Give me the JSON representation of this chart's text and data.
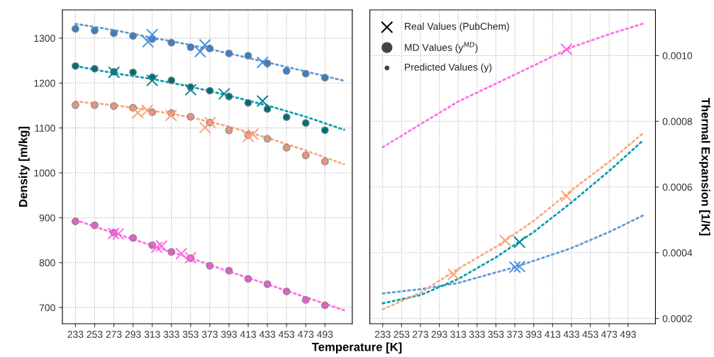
{
  "chart_data": [
    {
      "type": "scatter",
      "xlabel": "Temperature [K]",
      "ylabel": "Density [m/kg]",
      "xlim": [
        219.4,
        521.5
      ],
      "ylim": [
        664,
        1363
      ],
      "xticks": [
        233,
        253,
        273,
        293,
        313,
        333,
        353,
        373,
        393,
        413,
        433,
        453,
        473,
        493
      ],
      "yticks": [
        700,
        800,
        900,
        1000,
        1100,
        1200,
        1300
      ],
      "grid": true,
      "series": [
        {
          "type": "line",
          "line_style": "dotted",
          "color": "#5b9bd5",
          "x": [
            233,
            273,
            313,
            353,
            393,
            433,
            473,
            513
          ],
          "values": [
            1332,
            1318,
            1301,
            1285,
            1266,
            1246,
            1226,
            1205
          ]
        },
        {
          "marker": "circle",
          "color": "#3d7ebf",
          "x": [
            233,
            253,
            273,
            293,
            313,
            333,
            353,
            373,
            393,
            413,
            433,
            453,
            473,
            493
          ],
          "values": [
            1321,
            1317,
            1311,
            1305,
            1298,
            1290,
            1280,
            1277,
            1266,
            1261,
            1244,
            1227,
            1221,
            1212
          ]
        },
        {
          "marker": "cross",
          "color": "#4a90e2",
          "x": [
            308.6,
            313,
            363,
            368,
            428
          ],
          "values": [
            1292,
            1308,
            1270,
            1285,
            1246
          ]
        },
        {
          "type": "line",
          "line_style": "dotted",
          "color": "#00a0b0",
          "x": [
            233,
            273,
            313,
            353,
            393,
            433,
            473,
            513
          ],
          "values": [
            1238,
            1222,
            1209,
            1192,
            1172,
            1150,
            1125,
            1096
          ]
        },
        {
          "marker": "circle",
          "color": "#006e7a",
          "x": [
            233,
            253,
            273,
            293,
            313,
            333,
            353,
            373,
            393,
            413,
            433,
            453,
            473,
            493
          ],
          "values": [
            1238,
            1232,
            1225,
            1224,
            1213,
            1206,
            1191,
            1183,
            1170,
            1156,
            1142,
            1124,
            1111,
            1095
          ]
        },
        {
          "marker": "cross",
          "color": "#008591",
          "x": [
            273.1,
            313,
            353.1,
            388,
            428
          ],
          "values": [
            1224,
            1206,
            1185,
            1176,
            1160
          ]
        },
        {
          "type": "line",
          "line_style": "dotted",
          "color": "#f7a982",
          "x": [
            233,
            273,
            313,
            353,
            393,
            433,
            473,
            513
          ],
          "values": [
            1159,
            1151,
            1139,
            1124,
            1103,
            1078,
            1050,
            1019
          ]
        },
        {
          "marker": "circle",
          "color": "#e0977c",
          "x": [
            233,
            253,
            273,
            293,
            313,
            333,
            353,
            373,
            393,
            413,
            433,
            453,
            473,
            493
          ],
          "values": [
            1151,
            1151,
            1149,
            1145,
            1135,
            1133,
            1125,
            1112,
            1095,
            1084,
            1076,
            1056,
            1039,
            1025
          ]
        },
        {
          "marker": "cross",
          "color": "#ffa07a",
          "x": [
            298,
            307.8,
            332.6,
            368,
            373.4,
            413,
            418
          ],
          "values": [
            1134,
            1139,
            1128,
            1101,
            1112,
            1081,
            1086
          ]
        },
        {
          "type": "line",
          "line_style": "dotted",
          "color": "#ff6ee8",
          "x": [
            233,
            273,
            313,
            353,
            393,
            433,
            473,
            513
          ],
          "values": [
            895,
            866,
            838,
            810,
            780,
            752,
            723,
            694
          ]
        },
        {
          "marker": "circle",
          "color": "#e060c8",
          "x": [
            233,
            253,
            273,
            293,
            313,
            333,
            353,
            373,
            393,
            413,
            433,
            453,
            473,
            493
          ],
          "values": [
            892,
            883,
            867,
            855,
            839,
            824,
            810,
            793,
            782,
            764,
            752,
            736,
            717,
            705
          ]
        },
        {
          "marker": "cross",
          "color": "#ff66e0",
          "x": [
            272.7,
            277.6,
            317.7,
            322.7,
            343.3,
            353
          ],
          "values": [
            865,
            864,
            834,
            837,
            820,
            811
          ]
        }
      ]
    },
    {
      "type": "line",
      "ylabel": "Thermal Expansion [1/K]",
      "xlim": [
        219.4,
        522
      ],
      "ylim": [
        0.000184,
        0.001139
      ],
      "xticks": [
        233,
        253,
        273,
        293,
        313,
        333,
        353,
        373,
        393,
        413,
        433,
        453,
        473,
        493
      ],
      "yticks": [
        {
          "value": 0.0002,
          "label": "0.0002"
        },
        {
          "value": 0.0004,
          "label": "0.0004"
        },
        {
          "value": 0.0006,
          "label": "0.0006"
        },
        {
          "value": 0.0008,
          "label": "0.0008"
        },
        {
          "value": 0.001,
          "label": "0.0010"
        }
      ],
      "grid": true,
      "annotations": [
        "Real Values (PubChem)",
        "MD Values (y$^{MD}$)",
        "Predicted Values (y)"
      ],
      "series": [
        {
          "line_style": "dotted",
          "color": "#ff6ee8",
          "x": [
            233,
            273,
            313,
            373,
            433,
            473,
            508.6
          ],
          "values": [
            0.000721,
            0.000791,
            0.00086,
            0.000942,
            0.001025,
            0.001065,
            0.001097
          ]
        },
        {
          "type": "scatter",
          "marker": "cross",
          "color": "#ff66e0",
          "x": [
            427.8
          ],
          "values": [
            0.001019
          ]
        },
        {
          "line_style": "dotted",
          "color": "#5b9bd5",
          "x": [
            233,
            273,
            313,
            373,
            433,
            473,
            508.6
          ],
          "values": [
            0.000276,
            0.000289,
            0.000308,
            0.000356,
            0.000414,
            0.000463,
            0.000513
          ]
        },
        {
          "type": "scatter",
          "marker": "cross",
          "color": "#4a90e2",
          "x": [
            373.1,
            378
          ],
          "values": [
            0.000356,
            0.000358
          ]
        },
        {
          "line_style": "dotted",
          "color": "#00a0b0",
          "x": [
            233,
            273,
            313,
            353,
            393,
            433,
            473,
            508.6
          ],
          "values": [
            0.000246,
            0.000271,
            0.00032,
            0.000386,
            0.000463,
            0.000553,
            0.000649,
            0.000741
          ]
        },
        {
          "type": "scatter",
          "marker": "cross",
          "color": "#008591",
          "x": [
            378
          ],
          "values": [
            0.000432
          ]
        },
        {
          "line_style": "dotted",
          "color": "#f7a982",
          "x": [
            233,
            273,
            313,
            353,
            393,
            433,
            473,
            508.6
          ],
          "values": [
            0.000228,
            0.000278,
            0.000351,
            0.000418,
            0.000497,
            0.00059,
            0.000677,
            0.000763
          ]
        },
        {
          "type": "scatter",
          "marker": "cross",
          "color": "#ffa07a",
          "x": [
            308.1,
            362.8,
            427.8
          ],
          "values": [
            0.000334,
            0.000437,
            0.000572
          ]
        }
      ]
    }
  ]
}
